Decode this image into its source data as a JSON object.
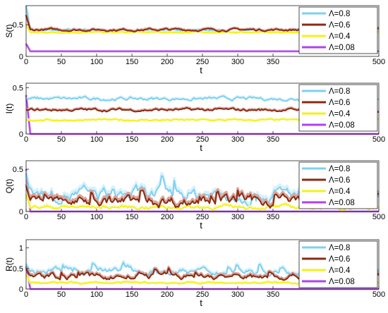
{
  "colors": {
    "s08": "#7cd0f2",
    "s08_light": "#d6f1fc",
    "s06": "#8a2a12",
    "s06_light": "#d9a49a",
    "s04": "#f2f21a",
    "s04_light": "#fafab0",
    "s008": "#b040f0",
    "s008_light": "#e2b8fa"
  },
  "chart_data": [
    {
      "type": "line",
      "ylabel": "S(t)",
      "xlabel": "t",
      "xlim": [
        0,
        500
      ],
      "ylim": [
        0,
        0.8
      ],
      "xticks": [
        "0",
        "50",
        "100",
        "150",
        "200",
        "250",
        "300",
        "350",
        "500"
      ],
      "xtick_values": [
        0,
        50,
        100,
        150,
        200,
        250,
        300,
        350,
        500
      ],
      "yticks": [
        "0",
        "0.5"
      ],
      "ytick_values": [
        0,
        0.5
      ],
      "legend": "top-right",
      "series": [
        {
          "name": "Λ=0.8",
          "color": "s08",
          "light": "s08_light",
          "start": 0.8,
          "level": 0.4,
          "noise": 0.012
        },
        {
          "name": "Λ=0.6",
          "color": "s06",
          "light": "s06_light",
          "start": 0.65,
          "level": 0.42,
          "noise": 0.012
        },
        {
          "name": "Λ=0.4",
          "color": "s04",
          "light": "s04_light",
          "start": 0.5,
          "level": 0.38,
          "noise": 0.006
        },
        {
          "name": "Λ=0.08",
          "color": "s008",
          "light": "s008_light",
          "start": 0.2,
          "level": 0.08,
          "noise": 0.0
        }
      ]
    },
    {
      "type": "line",
      "ylabel": "I(t)",
      "xlabel": "t",
      "xlim": [
        0,
        500
      ],
      "ylim": [
        0,
        0.55
      ],
      "xticks": [
        "0",
        "50",
        "100",
        "150",
        "200",
        "250",
        "300",
        "350",
        "500"
      ],
      "xtick_values": [
        0,
        50,
        100,
        150,
        200,
        250,
        300,
        350,
        500
      ],
      "yticks": [
        "0",
        "0.5"
      ],
      "ytick_values": [
        0,
        0.5
      ],
      "legend": "top-right",
      "series": [
        {
          "name": "Λ=0.8",
          "color": "s08",
          "light": "s08_light",
          "start": 0.38,
          "level": 0.38,
          "noise": 0.012
        },
        {
          "name": "Λ=0.6",
          "color": "s06",
          "light": "s06_light",
          "start": 0.26,
          "level": 0.26,
          "noise": 0.01
        },
        {
          "name": "Λ=0.4",
          "color": "s04",
          "light": "s04_light",
          "start": 0.15,
          "level": 0.15,
          "noise": 0.006
        },
        {
          "name": "Λ=0.08",
          "color": "s008",
          "light": "s008_light",
          "start": 0.42,
          "level": 0.0,
          "noise": 0.0
        }
      ]
    },
    {
      "type": "line",
      "ylabel": "Q(t)",
      "xlabel": "t",
      "xlim": [
        0,
        500
      ],
      "ylim": [
        0,
        0.6
      ],
      "xticks": [
        "0",
        "50",
        "100",
        "150",
        "200",
        "250",
        "300",
        "350",
        "500"
      ],
      "xtick_values": [
        0,
        50,
        100,
        150,
        200,
        250,
        300,
        350,
        500
      ],
      "yticks": [
        "0",
        "0.5"
      ],
      "ytick_values": [
        0,
        0.5
      ],
      "legend": "top-right",
      "series": [
        {
          "name": "Λ=0.8",
          "color": "s08",
          "light": "s08_light",
          "start": 0.45,
          "level": 0.2,
          "noise": 0.05
        },
        {
          "name": "Λ=0.6",
          "color": "s06",
          "light": "s06_light",
          "start": 0.3,
          "level": 0.12,
          "noise": 0.04
        },
        {
          "name": "Λ=0.4",
          "color": "s04",
          "light": "s04_light",
          "start": 0.2,
          "level": 0.05,
          "noise": 0.015
        },
        {
          "name": "Λ=0.08",
          "color": "s008",
          "light": "s008_light",
          "start": 0.5,
          "level": 0.0,
          "noise": 0.0
        }
      ]
    },
    {
      "type": "line",
      "ylabel": "R(t)",
      "xlabel": "t",
      "xlim": [
        0,
        500
      ],
      "ylim": [
        0,
        1.2
      ],
      "xticks": [
        "0",
        "50",
        "100",
        "150",
        "200",
        "250",
        "300",
        "350",
        "500"
      ],
      "xtick_values": [
        0,
        50,
        100,
        150,
        200,
        250,
        300,
        350,
        500
      ],
      "yticks": [
        "0",
        "0.5",
        "1"
      ],
      "ytick_values": [
        0,
        0.5,
        1
      ],
      "legend": "top-right",
      "series": [
        {
          "name": "Λ=0.8",
          "color": "s08",
          "light": "s08_light",
          "start": 0.6,
          "level": 0.42,
          "noise": 0.05
        },
        {
          "name": "Λ=0.6",
          "color": "s06",
          "light": "s06_light",
          "start": 0.5,
          "level": 0.3,
          "noise": 0.045
        },
        {
          "name": "Λ=0.4",
          "color": "s04",
          "light": "s04_light",
          "start": 0.35,
          "level": 0.15,
          "noise": 0.015
        },
        {
          "name": "Λ=0.08",
          "color": "s008",
          "light": "s008_light",
          "start": 0.55,
          "level": 0.0,
          "noise": 0.0
        }
      ]
    }
  ]
}
